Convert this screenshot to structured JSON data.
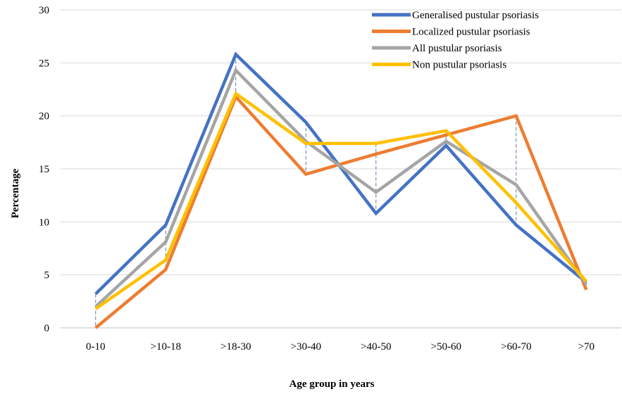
{
  "chart_data": {
    "type": "line",
    "title": "",
    "xlabel": "Age group in years",
    "ylabel": "Percentage",
    "ylim": [
      0,
      30
    ],
    "yticks": [
      0,
      5,
      10,
      15,
      20,
      25,
      30
    ],
    "grid": "horizontal",
    "legend_position": "top-right",
    "categories": [
      ">0-10",
      ">10-18",
      ">18-30",
      ">30-40",
      ">40-50",
      ">50-60",
      ">60-70",
      ">70"
    ],
    "category_labels": [
      "0-10",
      ">10-18",
      ">18-30",
      ">30-40",
      ">40-50",
      ">50-60",
      ">60-70",
      ">70"
    ],
    "series": [
      {
        "name": "Generalised pustular psoriasis",
        "color": "#4472C4",
        "values": [
          3.2,
          9.7,
          25.8,
          19.4,
          10.8,
          17.2,
          9.7,
          4.3
        ]
      },
      {
        "name": "Localized pustular psoriasis",
        "color": "#ED7D31",
        "values": [
          0.0,
          5.5,
          21.8,
          14.5,
          16.4,
          18.2,
          20.0,
          3.6
        ]
      },
      {
        "name": "All pustular psoriasis",
        "color": "#A5A5A5",
        "values": [
          2.0,
          8.1,
          24.3,
          17.6,
          12.8,
          17.6,
          13.5,
          4.1
        ]
      },
      {
        "name": "Non pustular psoriasis",
        "color": "#FFC000",
        "values": [
          1.8,
          6.4,
          22.1,
          17.4,
          17.4,
          18.6,
          11.8,
          4.4
        ]
      }
    ],
    "drop_lines": true
  }
}
